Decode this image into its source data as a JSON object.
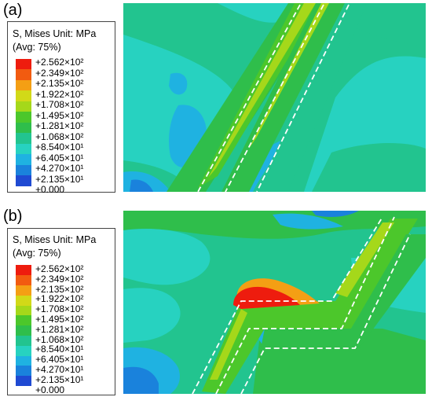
{
  "panels": [
    {
      "id": "a",
      "label": "(a)",
      "legend": {
        "title": "S, Mises  Unit: MPa",
        "avg": "(Avg: 75%)",
        "values": [
          "+2.562×10²",
          "+2.349×10²",
          "+2.135×10²",
          "+1.922×10²",
          "+1.708×10²",
          "+1.495×10²",
          "+1.281×10²",
          "+1.068×10²",
          "+8.540×10¹",
          "+6.405×10¹",
          "+4.270×10¹",
          "+2.135×10¹",
          "+0.000"
        ]
      }
    },
    {
      "id": "b",
      "label": "(b)",
      "legend": {
        "title": "S, Mises  Unit: MPa",
        "avg": "(Avg: 75%)",
        "values": [
          "+2.562×10²",
          "+2.349×10²",
          "+2.135×10²",
          "+1.922×10²",
          "+1.708×10²",
          "+1.495×10²",
          "+1.281×10²",
          "+1.068×10²",
          "+8.540×10¹",
          "+6.405×10¹",
          "+4.270×10¹",
          "+2.135×10¹",
          "+0.000"
        ]
      }
    }
  ],
  "colors": {
    "scale": [
      "#ee1c0e",
      "#f25b10",
      "#f49f14",
      "#d2d918",
      "#a5d81a",
      "#4cc72b",
      "#2fbe4b",
      "#22c48f",
      "#27d2c0",
      "#1fb2e1",
      "#1a82dc",
      "#1f4ad2"
    ]
  }
}
